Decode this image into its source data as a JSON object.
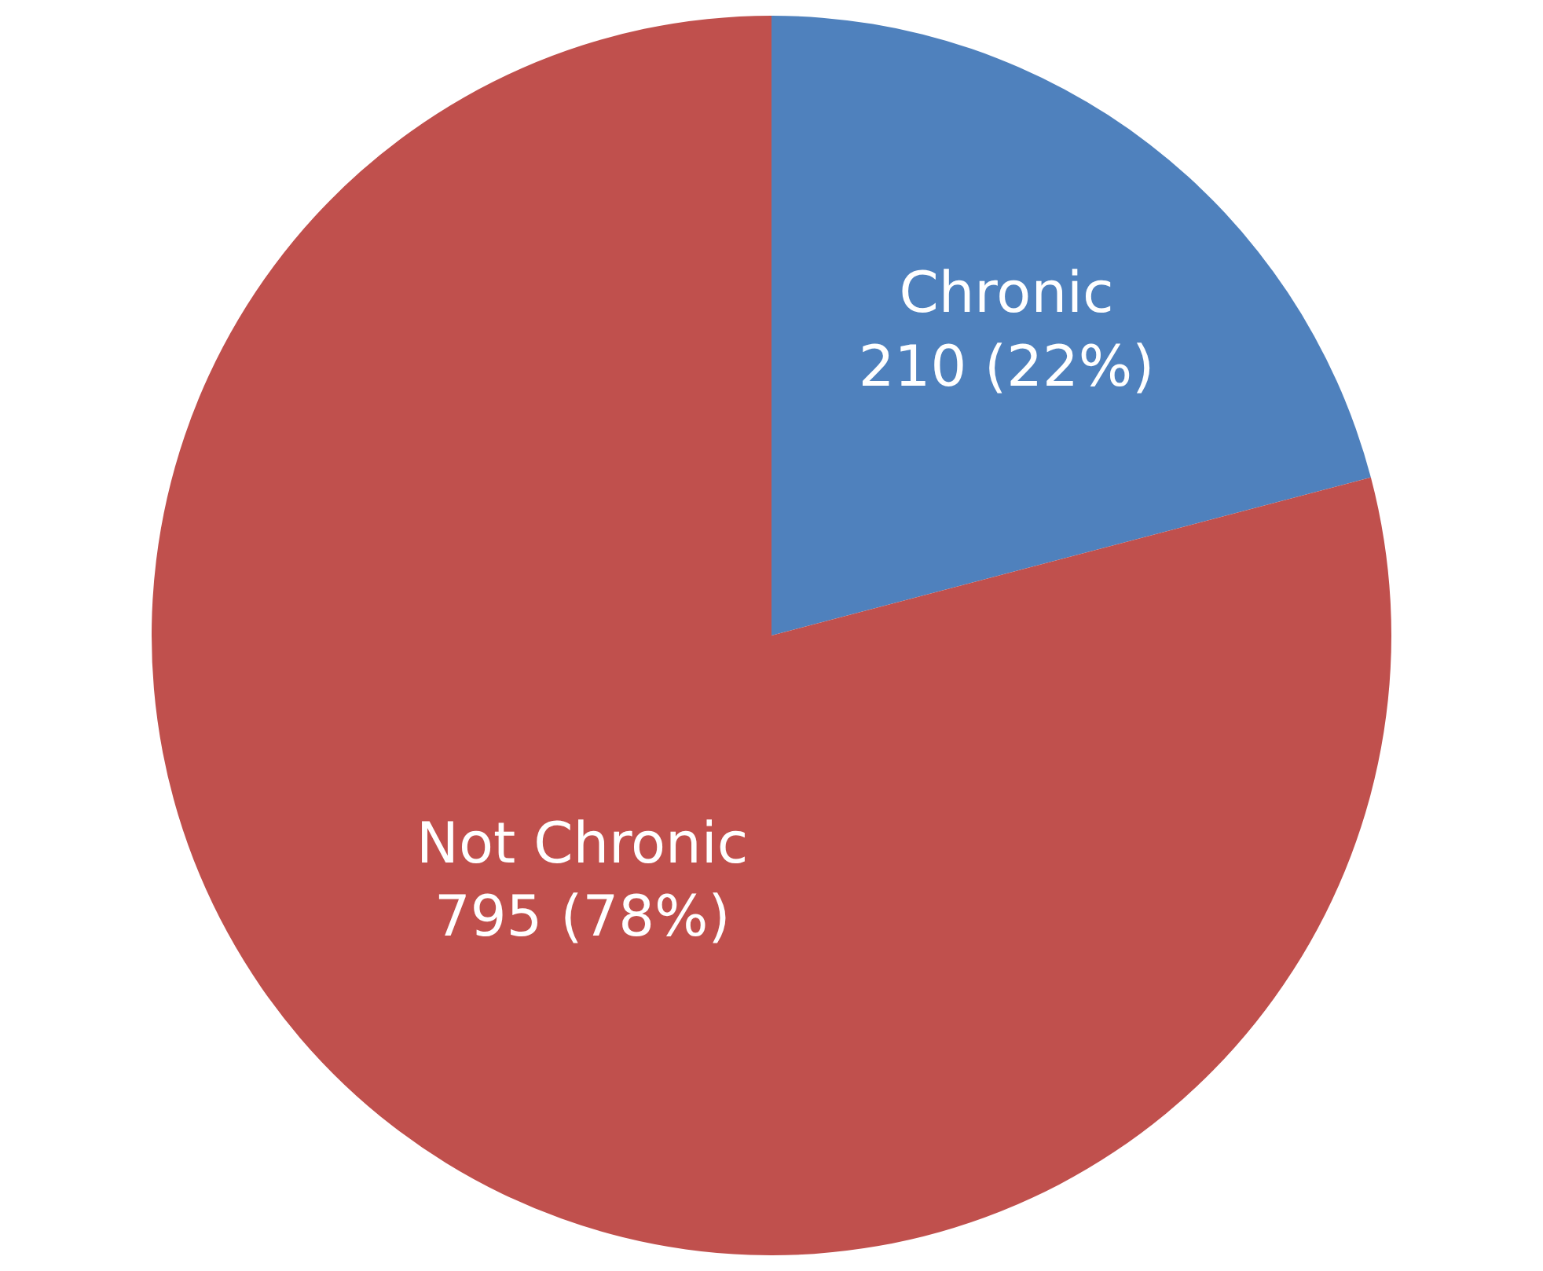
{
  "chart_data": {
    "type": "pie",
    "categories": [
      "Chronic",
      "Not Chronic"
    ],
    "values": [
      210,
      795
    ],
    "value_labels": [
      "210 (22%)",
      "795 (78%)"
    ],
    "colors": [
      "#4f81bd",
      "#c0504d"
    ],
    "legend": false
  }
}
